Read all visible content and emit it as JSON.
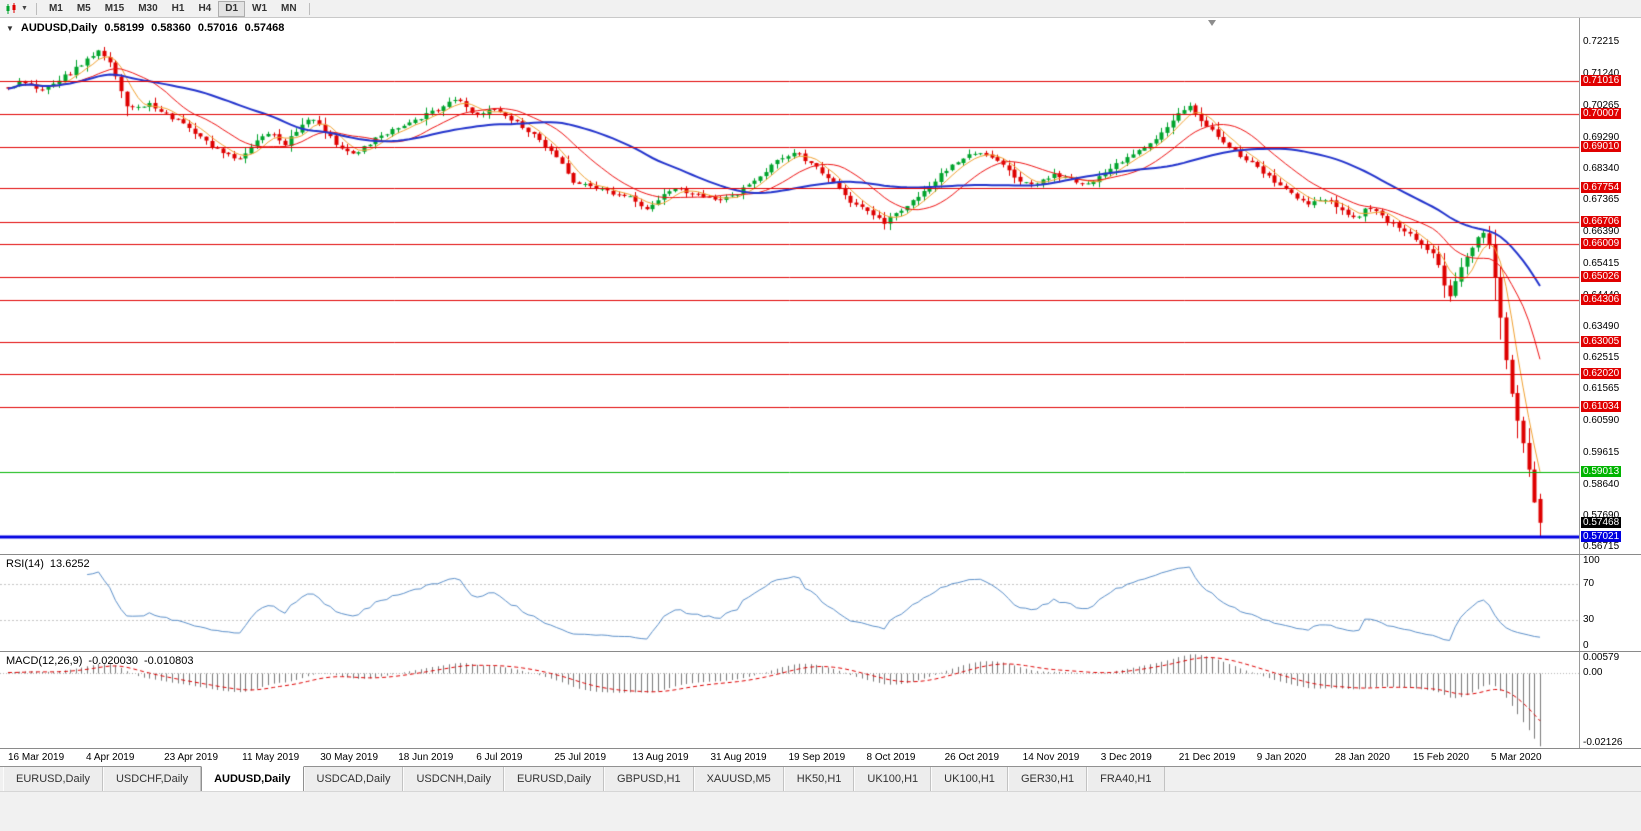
{
  "toolbar": {
    "timeframes": [
      {
        "label": "M1",
        "active": false
      },
      {
        "label": "M5",
        "active": false
      },
      {
        "label": "M15",
        "active": false
      },
      {
        "label": "M30",
        "active": false
      },
      {
        "label": "H1",
        "active": false
      },
      {
        "label": "H4",
        "active": false
      },
      {
        "label": "D1",
        "active": true
      },
      {
        "label": "W1",
        "active": false
      },
      {
        "label": "MN",
        "active": false
      }
    ]
  },
  "chart": {
    "symbol": "AUDUSD,Daily",
    "ohlc": {
      "open": "0.58199",
      "high": "0.58360",
      "low": "0.57016",
      "close": "0.57468"
    },
    "price_axis_ticks": [
      "0.72215",
      "0.71240",
      "0.70265",
      "0.69290",
      "0.68340",
      "0.67365",
      "0.66390",
      "0.65415",
      "0.64440",
      "0.63490",
      "0.62515",
      "0.61565",
      "0.60590",
      "0.59615",
      "0.58640",
      "0.57690",
      "0.56715"
    ],
    "current_price": {
      "label": "0.57468",
      "value": 0.57468,
      "bg": "#000000"
    }
  },
  "chart_data": {
    "type": "candlestick",
    "symbol": "AUDUSD",
    "timeframe": "Daily",
    "price_range": {
      "min": 0.5651,
      "max": 0.7296
    },
    "colors": {
      "up": "#00a42c",
      "down": "#de0000",
      "background": "#ffffff"
    },
    "candles": {
      "count": 272,
      "seed": 9,
      "noise": 0.0009,
      "wick": 0.0009,
      "last": {
        "o": 0.58199,
        "h": 0.5836,
        "l": 0.57016,
        "c": 0.57468
      },
      "anchors": [
        [
          0.0,
          0.7085
        ],
        [
          0.01,
          0.71
        ],
        [
          0.022,
          0.7075
        ],
        [
          0.035,
          0.711
        ],
        [
          0.048,
          0.715
        ],
        [
          0.058,
          0.72
        ],
        [
          0.065,
          0.718
        ],
        [
          0.072,
          0.709
        ],
        [
          0.078,
          0.702
        ],
        [
          0.092,
          0.703
        ],
        [
          0.105,
          0.7
        ],
        [
          0.118,
          0.696
        ],
        [
          0.13,
          0.6915
        ],
        [
          0.142,
          0.688
        ],
        [
          0.152,
          0.6865
        ],
        [
          0.162,
          0.692
        ],
        [
          0.172,
          0.6945
        ],
        [
          0.18,
          0.6905
        ],
        [
          0.19,
          0.696
        ],
        [
          0.198,
          0.699
        ],
        [
          0.208,
          0.694
        ],
        [
          0.218,
          0.6895
        ],
        [
          0.228,
          0.688
        ],
        [
          0.24,
          0.6925
        ],
        [
          0.252,
          0.6955
        ],
        [
          0.264,
          0.6975
        ],
        [
          0.276,
          0.7005
        ],
        [
          0.286,
          0.7035
        ],
        [
          0.295,
          0.704
        ],
        [
          0.305,
          0.6995
        ],
        [
          0.316,
          0.7015
        ],
        [
          0.328,
          0.6985
        ],
        [
          0.34,
          0.695
        ],
        [
          0.352,
          0.6895
        ],
        [
          0.362,
          0.6845
        ],
        [
          0.37,
          0.679
        ],
        [
          0.382,
          0.6775
        ],
        [
          0.395,
          0.676
        ],
        [
          0.407,
          0.6745
        ],
        [
          0.416,
          0.67
        ],
        [
          0.425,
          0.6745
        ],
        [
          0.437,
          0.6775
        ],
        [
          0.45,
          0.6755
        ],
        [
          0.463,
          0.6735
        ],
        [
          0.477,
          0.676
        ],
        [
          0.49,
          0.681
        ],
        [
          0.502,
          0.686
        ],
        [
          0.514,
          0.688
        ],
        [
          0.526,
          0.6845
        ],
        [
          0.538,
          0.679
        ],
        [
          0.55,
          0.6735
        ],
        [
          0.562,
          0.67
        ],
        [
          0.572,
          0.6672
        ],
        [
          0.584,
          0.671
        ],
        [
          0.597,
          0.676
        ],
        [
          0.61,
          0.682
        ],
        [
          0.622,
          0.6865
        ],
        [
          0.634,
          0.6885
        ],
        [
          0.646,
          0.6855
        ],
        [
          0.658,
          0.6805
        ],
        [
          0.67,
          0.6785
        ],
        [
          0.682,
          0.682
        ],
        [
          0.694,
          0.68
        ],
        [
          0.706,
          0.6785
        ],
        [
          0.718,
          0.683
        ],
        [
          0.73,
          0.6865
        ],
        [
          0.742,
          0.69
        ],
        [
          0.754,
          0.6945
        ],
        [
          0.763,
          0.7
        ],
        [
          0.771,
          0.7028
        ],
        [
          0.779,
          0.6985
        ],
        [
          0.789,
          0.693
        ],
        [
          0.799,
          0.689
        ],
        [
          0.809,
          0.686
        ],
        [
          0.819,
          0.6825
        ],
        [
          0.829,
          0.6785
        ],
        [
          0.839,
          0.675
        ],
        [
          0.849,
          0.6725
        ],
        [
          0.859,
          0.6745
        ],
        [
          0.869,
          0.671
        ],
        [
          0.879,
          0.668
        ],
        [
          0.889,
          0.6715
        ],
        [
          0.899,
          0.668
        ],
        [
          0.909,
          0.665
        ],
        [
          0.918,
          0.662
        ],
        [
          0.927,
          0.6585
        ],
        [
          0.934,
          0.654
        ],
        [
          0.94,
          0.6434
        ],
        [
          0.947,
          0.652
        ],
        [
          0.954,
          0.6575
        ],
        [
          0.962,
          0.6645
        ],
        [
          0.968,
          0.659
        ],
        [
          0.972,
          0.645
        ],
        [
          0.976,
          0.631
        ],
        [
          0.98,
          0.617
        ],
        [
          0.984,
          0.609
        ],
        [
          0.987,
          0.603
        ],
        [
          0.99,
          0.597
        ],
        [
          0.993,
          0.59
        ],
        [
          0.996,
          0.5815
        ],
        [
          1.0,
          0.5747
        ]
      ]
    },
    "moving_averages": [
      {
        "period": 5,
        "color": "#f0a030",
        "width": 1
      },
      {
        "period": 13,
        "color": "#ee1111",
        "width": 1
      },
      {
        "period": 34,
        "color": "#2233cc",
        "width": 2
      }
    ],
    "levels": [
      {
        "price": 0.71016,
        "label": "0.71016",
        "color": "#e00000",
        "line_width": 1
      },
      {
        "price": 0.70007,
        "label": "0.70007",
        "color": "#e00000",
        "line_width": 1
      },
      {
        "price": 0.6901,
        "label": "0.69010",
        "color": "#e00000",
        "line_width": 1
      },
      {
        "price": 0.67754,
        "label": "0.67754",
        "color": "#e00000",
        "line_width": 1
      },
      {
        "price": 0.66706,
        "label": "0.66706",
        "color": "#e00000",
        "line_width": 1
      },
      {
        "price": 0.66009,
        "label": "0.66009",
        "color": "#e00000",
        "line_width": 1
      },
      {
        "price": 0.65026,
        "label": "0.65026",
        "color": "#e00000",
        "line_width": 1
      },
      {
        "price": 0.64306,
        "label": "0.64306",
        "color": "#e00000",
        "line_width": 1
      },
      {
        "price": 0.63005,
        "label": "0.63005",
        "color": "#e00000",
        "line_width": 1
      },
      {
        "price": 0.6202,
        "label": "0.62020",
        "color": "#e00000",
        "line_width": 1
      },
      {
        "price": 0.61034,
        "label": "0.61034",
        "color": "#e00000",
        "line_width": 1
      },
      {
        "price": 0.59013,
        "label": "0.59013",
        "color": "#00b400",
        "line_width": 1
      },
      {
        "price": 0.57021,
        "label": "0.57021",
        "color": "#0000e0",
        "line_width": 3
      }
    ]
  },
  "rsi": {
    "label": "RSI(14)",
    "value": "13.6252",
    "period": 14,
    "line_color": "#5b8fc9",
    "level_lines": [
      70,
      30
    ],
    "axis_labels": [
      100,
      70,
      30,
      0
    ]
  },
  "macd": {
    "label": "MACD(12,26,9)",
    "value_main": "-0.020030",
    "value_signal": "-0.010803",
    "fast": 12,
    "slow": 26,
    "signal": 9,
    "histogram_color": "#7a7a7a",
    "signal_color": "#dd0000",
    "scale_max": 0.00579,
    "scale_min": -0.02126,
    "axis_labels": [
      {
        "value": 0.00579,
        "label": "0.00579"
      },
      {
        "value": 0,
        "label": "0.00"
      },
      {
        "value": -0.02126,
        "label": "-0.02126"
      }
    ]
  },
  "date_axis": {
    "labels": [
      "16 Mar 2019",
      "4 Apr 2019",
      "23 Apr 2019",
      "11 May 2019",
      "30 May 2019",
      "18 Jun 2019",
      "6 Jul 2019",
      "25 Jul 2019",
      "13 Aug 2019",
      "31 Aug 2019",
      "19 Sep 2019",
      "8 Oct 2019",
      "26 Oct 2019",
      "14 Nov 2019",
      "3 Dec 2019",
      "21 Dec 2019",
      "9 Jan 2020",
      "28 Jan 2020",
      "15 Feb 2020",
      "5 Mar 2020"
    ]
  },
  "tabs": [
    {
      "label": "EURUSD,Daily",
      "active": false
    },
    {
      "label": "USDCHF,Daily",
      "active": false
    },
    {
      "label": "AUDUSD,Daily",
      "active": true
    },
    {
      "label": "USDCAD,Daily",
      "active": false
    },
    {
      "label": "USDCNH,Daily",
      "active": false
    },
    {
      "label": "EURUSD,Daily",
      "active": false
    },
    {
      "label": "GBPUSD,H1",
      "active": false
    },
    {
      "label": "XAUUSD,M5",
      "active": false
    },
    {
      "label": "HK50,H1",
      "active": false
    },
    {
      "label": "UK100,H1",
      "active": false
    },
    {
      "label": "UK100,H1",
      "active": false
    },
    {
      "label": "GER30,H1",
      "active": false
    },
    {
      "label": "FRA40,H1",
      "active": false
    }
  ]
}
